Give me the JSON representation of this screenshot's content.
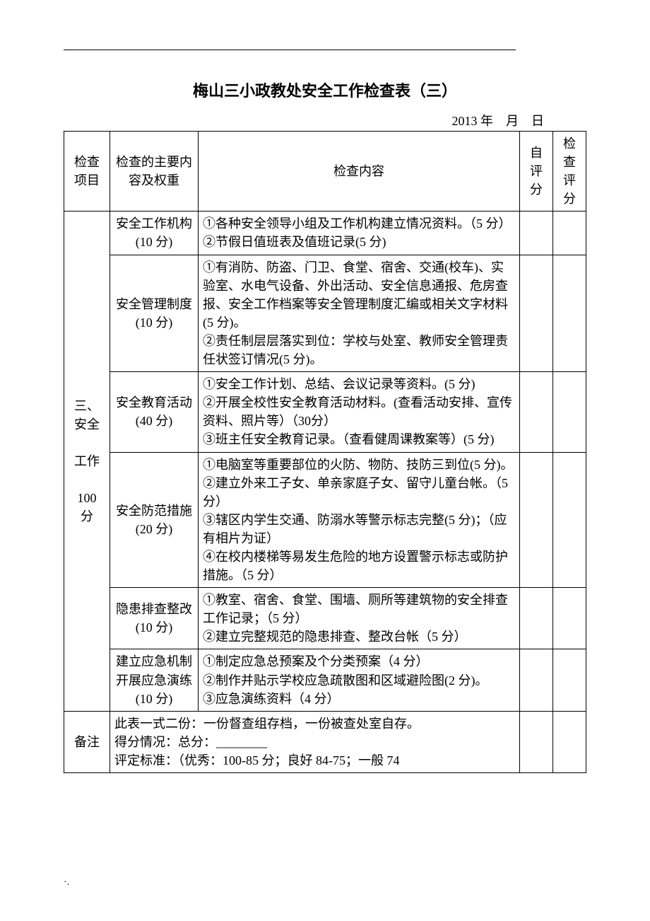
{
  "title": "梅山三小政教处安全工作检查表（三）",
  "dateline": "2013 年　月　日",
  "header": {
    "col1": "检查项目",
    "col2": "检查的主要内容及权重",
    "col3": "检查内容",
    "col4": "自评分",
    "col5": "检查评分"
  },
  "category": {
    "label": "三、安全\n\n工作\n\n100\n分"
  },
  "rows": [
    {
      "subject": "安全工作机构\n(10 分)",
      "content": "①各种安全领导小组及工作机构建立情况资料。（5 分）\n②节假日值班表及值班记录(5 分)"
    },
    {
      "subject": "安全管理制度\n(10 分)",
      "content": "①有消防、防盗、门卫、食堂、宿舍、交通(校车)、实验室、水电气设备、外出活动、安全信息通报、危房查报、安全工作档案等安全管理制度汇编或相关文字材料(5 分)。\n②责任制层层落实到位：学校与处室、教师安全管理责任状签订情况(5 分)。"
    },
    {
      "subject": "安全教育活动\n(40 分)",
      "content": "①安全工作计划、总结、会议记录等资料。(5 分)\n②开展全校性安全教育活动材料。(查看活动安排、宣传资料、照片等）（30分）\n③班主任安全教育记录。（查看健周课教案等）(5 分)"
    },
    {
      "subject": "安全防范措施\n(20 分)",
      "content": "①电脑室等重要部位的火防、物防、技防三到位(5 分)。\n②建立外来工子女、单亲家庭子女、留守儿童台帐。（5 分）\n③辖区内学生交通、防溺水等警示标志完整(5 分)；（应有相片为证）\n④在校内楼梯等易发生危险的地方设置警示标志或防护措施。（5 分）"
    },
    {
      "subject": "隐患排查整改\n(10 分)",
      "content": "①教室、宿舍、食堂、围墙、厕所等建筑物的安全排查工作记录；（5 分）\n②建立完整规范的隐患排查、整改台帐（5 分）"
    },
    {
      "subject": "建立应急机制\n开展应急演练\n(10 分)",
      "content": "①制定应急总预案及个分类预案（4 分）\n②制作并贴示学校应急疏散图和区域避险图(2 分)。\n③应急演练资料（4 分）"
    }
  ],
  "remark": {
    "label": "备注",
    "content": "此表一式二份：一份督查组存档，一份被查处室自存。\n得分情况：总分：________\n评定标准：（优秀：100-85 分；良好 84-75；一般 74"
  },
  "footer_mark": "·."
}
